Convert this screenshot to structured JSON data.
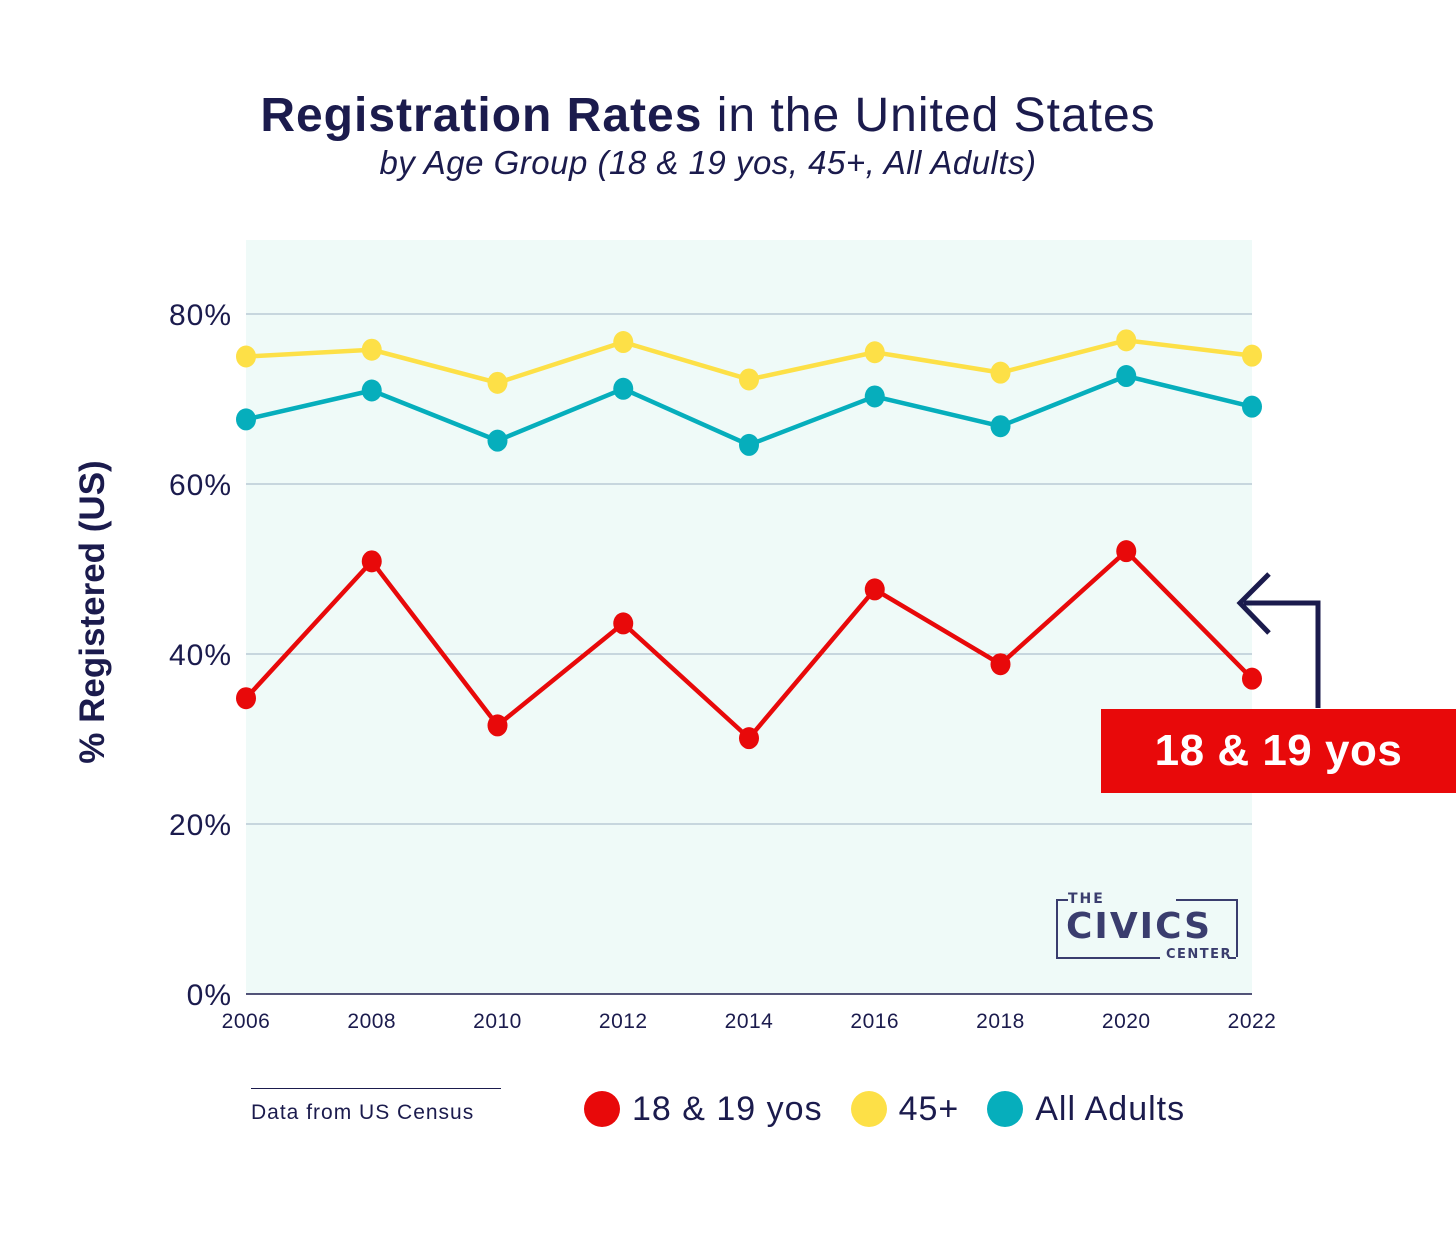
{
  "header": {
    "title_bold": "Registration Rates",
    "title_rest": " in the United States",
    "subtitle": "by Age Group (18 & 19 yos, 45+, All Adults)"
  },
  "chart_data": {
    "type": "line",
    "title": "Registration Rates in the United States",
    "subtitle": "by Age Group (18 & 19 yos, 45+, All Adults)",
    "ylabel": "% Registered (US)",
    "xlabel": "",
    "x": [
      2006,
      2008,
      2010,
      2012,
      2014,
      2016,
      2018,
      2020,
      2022
    ],
    "x_tick_labels": [
      "2006",
      "2008",
      "2010",
      "2012",
      "2014",
      "2016",
      "2018",
      "2020",
      "2022"
    ],
    "y_ticks": [
      0,
      20,
      40,
      60,
      80
    ],
    "y_tick_labels": [
      "0%",
      "20%",
      "40%",
      "60%",
      "80%"
    ],
    "ylim": [
      0,
      88
    ],
    "grid": true,
    "series": [
      {
        "name": "18 & 19 yos",
        "color": "#e8090a",
        "values": [
          34.8,
          50.9,
          31.6,
          43.6,
          30.1,
          47.6,
          38.8,
          52.1,
          37.1
        ]
      },
      {
        "name": "45+",
        "color": "#fde047",
        "values": [
          75.0,
          75.8,
          71.9,
          76.7,
          72.3,
          75.5,
          73.1,
          76.9,
          75.1
        ]
      },
      {
        "name": "All Adults",
        "color": "#06aebc",
        "values": [
          67.6,
          71.0,
          65.1,
          71.2,
          64.6,
          70.3,
          66.8,
          72.7,
          69.1
        ]
      }
    ],
    "legend_position": "bottom",
    "annotation": "18 & 19 yos"
  },
  "callout": {
    "label": "18 & 19 yos"
  },
  "source": {
    "text": "Data from US Census"
  },
  "logo": {
    "the": "THE",
    "civics": "CIVICS",
    "center": "CENTER"
  },
  "colors": {
    "navy": "#1b1b4d",
    "plot_background": "#effaf8",
    "red": "#e8090a",
    "yellow": "#fde047",
    "teal": "#06aebc"
  }
}
